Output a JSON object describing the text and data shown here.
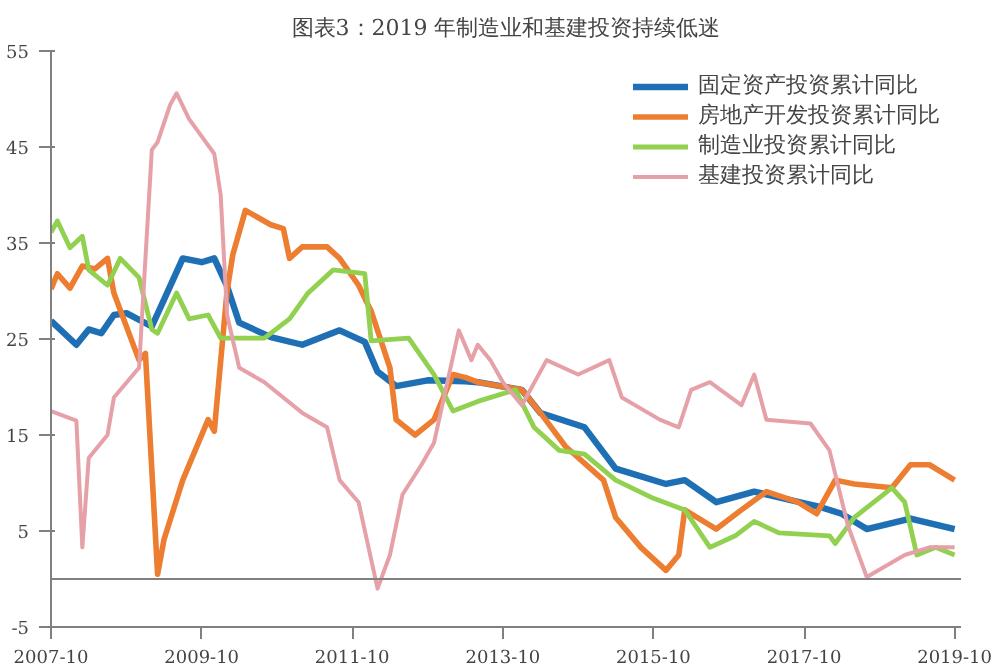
{
  "chart_data": {
    "type": "line",
    "title": "图表3：2019 年制造业和基建投资持续低迷",
    "xlim": [
      "2007-10",
      "2019-11"
    ],
    "xticks": [
      "2007-10",
      "2009-10",
      "2011-10",
      "2013-10",
      "2015-10",
      "2017-10",
      "2019-10"
    ],
    "ylim": [
      -5,
      55
    ],
    "yticks": [
      -5,
      5,
      15,
      25,
      35,
      45,
      55
    ],
    "grid": false,
    "legend": "top right",
    "line_style": "solid",
    "ref_lines": [
      {
        "axis": "y",
        "value": 0,
        "color": "#808080"
      }
    ],
    "series": [
      {
        "name": "固定资产投资累计同比",
        "color": "#1f6fb5",
        "x": [
          "2007-10",
          "2008-02",
          "2008-04",
          "2008-06",
          "2008-08",
          "2008-10",
          "2009-02",
          "2009-05",
          "2009-07",
          "2009-10",
          "2009-12",
          "2010-02",
          "2010-04",
          "2010-09",
          "2011-02",
          "2011-08",
          "2011-12",
          "2012-02",
          "2012-05",
          "2012-10",
          "2013-04",
          "2013-06",
          "2014-01",
          "2014-04",
          "2014-11",
          "2015-04",
          "2015-12",
          "2016-03",
          "2016-08",
          "2017-02",
          "2017-12",
          "2018-04",
          "2018-08",
          "2019-03",
          "2019-10"
        ],
        "values": [
          26.9,
          24.4,
          26.0,
          25.6,
          27.5,
          27.7,
          26.3,
          30.5,
          33.4,
          33.0,
          33.4,
          30.5,
          26.7,
          25.2,
          24.4,
          25.9,
          24.7,
          21.6,
          20.1,
          20.7,
          20.6,
          20.5,
          19.7,
          17.3,
          15.8,
          11.5,
          9.9,
          10.3,
          8.0,
          9.1,
          7.6,
          6.8,
          5.2,
          6.3,
          5.2
        ]
      },
      {
        "name": "房地产开发投资累计同比",
        "color": "#ed7d31",
        "x": [
          "2007-10",
          "2007-11",
          "2008-01",
          "2008-03",
          "2008-05",
          "2008-07",
          "2008-08",
          "2008-12",
          "2009-01",
          "2009-03",
          "2009-04",
          "2009-07",
          "2009-11",
          "2009-12",
          "2010-02",
          "2010-03",
          "2010-05",
          "2010-09",
          "2010-11",
          "2010-12",
          "2011-02",
          "2011-06",
          "2011-08",
          "2011-11",
          "2012-01",
          "2012-04",
          "2012-05",
          "2012-08",
          "2012-11",
          "2013-02",
          "2013-04",
          "2013-06",
          "2014-01",
          "2014-04",
          "2014-08",
          "2015-02",
          "2015-04",
          "2015-08",
          "2015-12",
          "2016-02",
          "2016-03",
          "2016-08",
          "2016-12",
          "2017-04",
          "2017-09",
          "2017-12",
          "2018-03",
          "2018-06",
          "2018-12",
          "2019-03",
          "2019-06",
          "2019-10"
        ],
        "values": [
          30.2,
          31.8,
          30.3,
          32.6,
          32.3,
          33.4,
          29.8,
          22.8,
          23.5,
          0.5,
          4.1,
          10.3,
          16.6,
          15.4,
          30.0,
          33.8,
          38.4,
          36.9,
          36.5,
          33.4,
          34.6,
          34.6,
          33.4,
          30.6,
          27.9,
          22.0,
          16.6,
          15.0,
          16.6,
          21.3,
          21.0,
          20.5,
          19.7,
          17.3,
          13.8,
          10.3,
          6.4,
          3.3,
          0.9,
          2.5,
          7.2,
          5.2,
          7.2,
          9.1,
          8.0,
          6.8,
          10.3,
          9.9,
          9.5,
          11.9,
          11.9,
          10.3
        ]
      },
      {
        "name": "制造业投资累计同比",
        "color": "#92d050",
        "x": [
          "2007-10",
          "2007-11",
          "2008-01",
          "2008-03",
          "2008-04",
          "2008-07",
          "2008-09",
          "2008-12",
          "2009-02",
          "2009-03",
          "2009-06",
          "2009-08",
          "2009-11",
          "2010-01",
          "2010-08",
          "2010-12",
          "2011-03",
          "2011-07",
          "2011-12",
          "2012-01",
          "2012-07",
          "2012-11",
          "2013-02",
          "2013-06",
          "2013-12",
          "2014-03",
          "2014-07",
          "2014-11",
          "2015-04",
          "2015-10",
          "2016-03",
          "2016-07",
          "2016-11",
          "2017-02",
          "2017-06",
          "2018-02",
          "2018-03",
          "2018-06",
          "2018-12",
          "2019-02",
          "2019-04",
          "2019-07",
          "2019-10"
        ],
        "values": [
          36.1,
          37.3,
          34.5,
          35.7,
          32.2,
          30.6,
          33.4,
          31.4,
          26.0,
          25.6,
          29.8,
          27.1,
          27.5,
          25.1,
          25.1,
          27.1,
          29.8,
          32.2,
          31.8,
          24.8,
          25.1,
          21.3,
          17.5,
          18.5,
          19.7,
          15.8,
          13.4,
          13.0,
          10.3,
          8.4,
          7.2,
          3.3,
          4.5,
          6.0,
          4.8,
          4.5,
          3.7,
          6.4,
          9.5,
          8.0,
          2.5,
          3.3,
          2.5
        ]
      },
      {
        "name": "基建投资累计同比",
        "color": "#e6a0a8",
        "x": [
          "2007-10",
          "2008-02",
          "2008-03",
          "2008-04",
          "2008-07",
          "2008-08",
          "2008-12",
          "2009-02",
          "2009-03",
          "2009-05",
          "2009-06",
          "2009-08",
          "2009-12",
          "2010-01",
          "2010-02",
          "2010-04",
          "2010-08",
          "2011-02",
          "2011-06",
          "2011-08",
          "2011-11",
          "2012-02",
          "2012-04",
          "2012-06",
          "2012-09",
          "2012-11",
          "2013-03",
          "2013-05",
          "2013-06",
          "2013-08",
          "2013-10",
          "2014-01",
          "2014-05",
          "2014-10",
          "2015-03",
          "2015-05",
          "2015-11",
          "2016-02",
          "2016-04",
          "2016-07",
          "2016-12",
          "2017-02",
          "2017-04",
          "2017-11",
          "2018-02",
          "2018-05",
          "2018-08",
          "2019-02",
          "2019-06",
          "2019-10"
        ],
        "values": [
          17.5,
          16.5,
          3.3,
          12.6,
          15.0,
          18.9,
          22.0,
          44.7,
          45.5,
          49.4,
          50.6,
          47.9,
          44.3,
          40.0,
          27.5,
          22.0,
          20.5,
          17.3,
          15.8,
          10.3,
          8.0,
          -1.0,
          2.5,
          8.8,
          11.9,
          14.2,
          25.9,
          22.8,
          24.4,
          22.8,
          20.5,
          18.1,
          22.8,
          21.3,
          22.8,
          18.9,
          16.6,
          15.8,
          19.7,
          20.5,
          18.1,
          21.3,
          16.6,
          16.2,
          13.4,
          5.6,
          0.2,
          2.5,
          3.3,
          3.3
        ]
      }
    ]
  }
}
